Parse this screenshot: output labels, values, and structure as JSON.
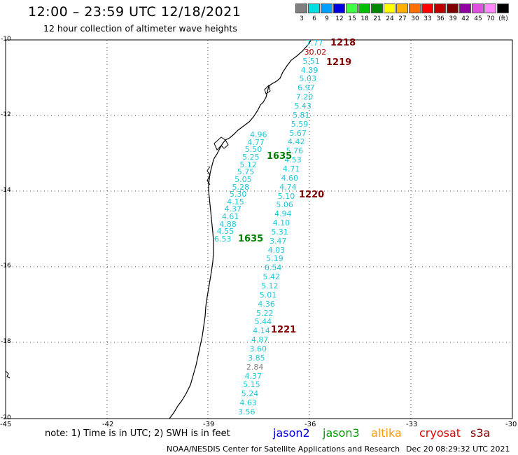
{
  "header": {
    "title": "12:00 – 23:59 UTC 12/18/2021",
    "subtitle": "12 hour collection of altimeter wave heights"
  },
  "colorbar": {
    "colors": [
      "#808080",
      "#00e0e0",
      "#00a0ff",
      "#0000e0",
      "#40ff40",
      "#00c000",
      "#008800",
      "#ffff00",
      "#ffb000",
      "#ff7000",
      "#ff0000",
      "#c00000",
      "#800000",
      "#9000a0",
      "#e050e0",
      "#ff88ff",
      "#000000"
    ],
    "labels": [
      "3",
      "6",
      "9",
      "12",
      "15",
      "18",
      "21",
      "24",
      "27",
      "30",
      "33",
      "36",
      "39",
      "42",
      "45",
      "70",
      "(ft)"
    ]
  },
  "axes": {
    "lat_labels": [
      "-10",
      "-12",
      "-14",
      "-16",
      "-18",
      "-20"
    ],
    "lon_labels": [
      "-45",
      "-42",
      "-39",
      "-36",
      "-33",
      "-30"
    ]
  },
  "passes": [
    {
      "label": "1218",
      "color": "#800000"
    },
    {
      "label": "1219",
      "color": "#800000"
    },
    {
      "label": "1635",
      "color": "#008000"
    },
    {
      "label": "1220",
      "color": "#800000"
    },
    {
      "label": "1635",
      "color": "#008000"
    },
    {
      "label": "1221",
      "color": "#800000"
    }
  ],
  "track_east": [
    "7.77",
    "30.02",
    "5.51",
    "4.39",
    "5.03",
    "6.97",
    "7.20",
    "5.43",
    "5.81",
    "5.59",
    "5.67",
    "4.42",
    "5.76",
    "4.53",
    "4.71",
    "4.60",
    "4.74",
    "5.10",
    "5.06",
    "4.94",
    "4.10",
    "5.31",
    "3.47",
    "4.03",
    "5.19",
    "6.54",
    "5.42",
    "5.12",
    "5.01",
    "4.36",
    "5.22",
    "5.44",
    "4.14",
    "4.87",
    "3.60",
    "3.85",
    "2.84",
    "4.37",
    "5.15",
    "5.24",
    "4.63",
    "3.56"
  ],
  "track_west": [
    "4.96",
    "4.77",
    "5.50",
    "5.25",
    "5.12",
    "5.75",
    "5.05",
    "5.28",
    "5.30",
    "4.15",
    "4.37",
    "4.61",
    "4.88",
    "4.55",
    "6.53"
  ],
  "footer": {
    "note": "note:  1) Time is in UTC;  2) SWH is in feet",
    "satellites": [
      {
        "name": "jason2",
        "color": "#0000e0"
      },
      {
        "name": "jason3",
        "color": "#00a000"
      },
      {
        "name": "altika",
        "color": "#ff9900"
      },
      {
        "name": "cryosat",
        "color": "#e00000"
      },
      {
        "name": "s3a",
        "color": "#800000"
      }
    ],
    "credit": "NOAA/NESDIS Center for Satellite Applications and Research",
    "timestamp": "Dec 20 08:29:32 UTC 2021"
  }
}
